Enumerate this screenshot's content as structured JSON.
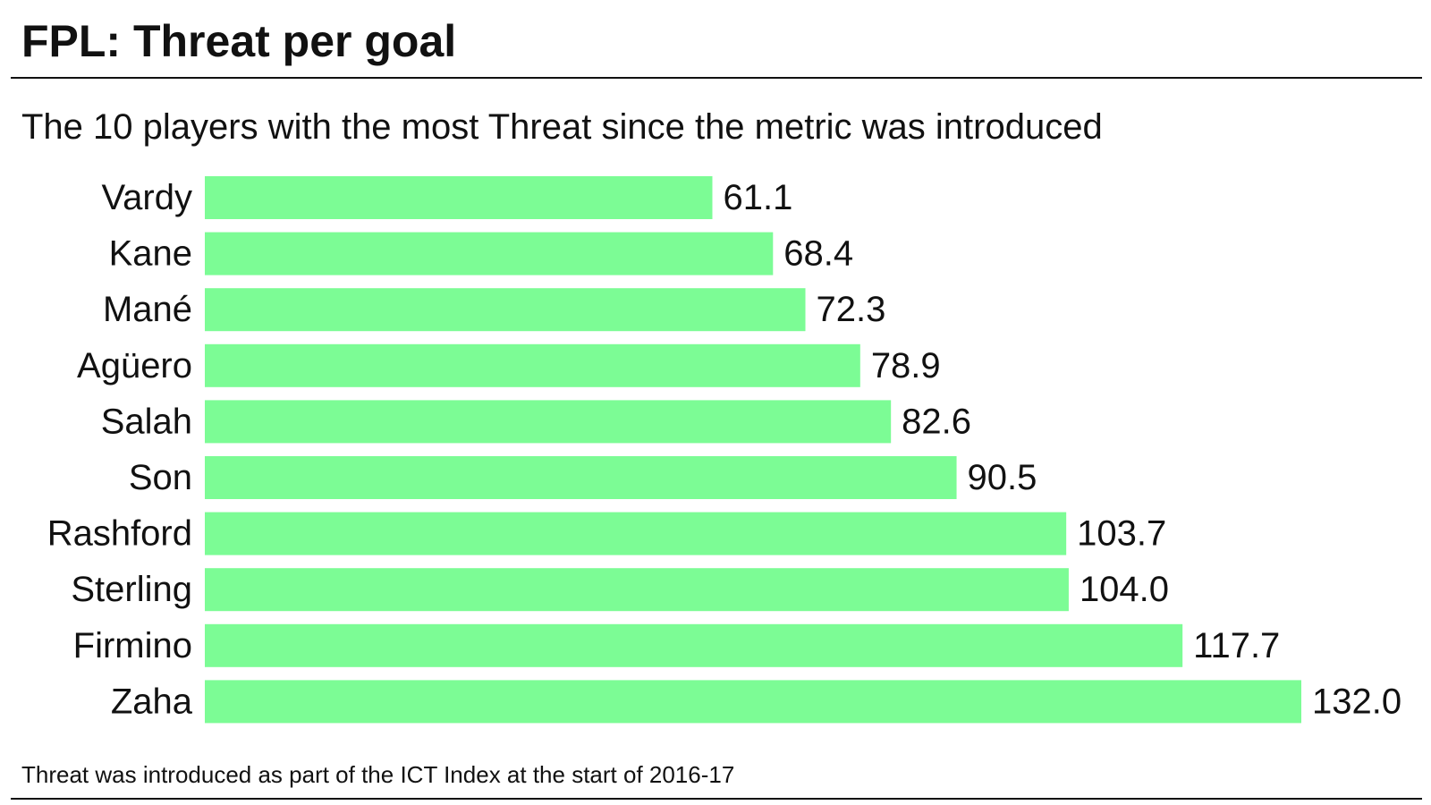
{
  "header": {
    "title": "FPL: Threat per goal",
    "subtitle": "The 10 players with the most Threat since the metric was introduced"
  },
  "footer": {
    "note": "Threat was introduced as part of the ICT Index at the start of 2016-17"
  },
  "colors": {
    "bar": "#7cfc95",
    "text": "#111111"
  },
  "chart_data": {
    "type": "bar",
    "orientation": "horizontal",
    "title": "FPL: Threat per goal",
    "subtitle": "The 10 players with the most Threat since the metric was introduced",
    "categories": [
      "Vardy",
      "Kane",
      "Mané",
      "Agüero",
      "Salah",
      "Son",
      "Rashford",
      "Sterling",
      "Firmino",
      "Zaha"
    ],
    "values": [
      61.1,
      68.4,
      72.3,
      78.9,
      82.6,
      90.5,
      103.7,
      104.0,
      117.7,
      132.0
    ],
    "value_labels": [
      "61.1",
      "68.4",
      "72.3",
      "78.9",
      "82.6",
      "90.5",
      "103.7",
      "104.0",
      "117.7",
      "132.0"
    ],
    "xlabel": "",
    "ylabel": "",
    "xlim": [
      0,
      132.0
    ],
    "grid": false,
    "legend": "none"
  }
}
